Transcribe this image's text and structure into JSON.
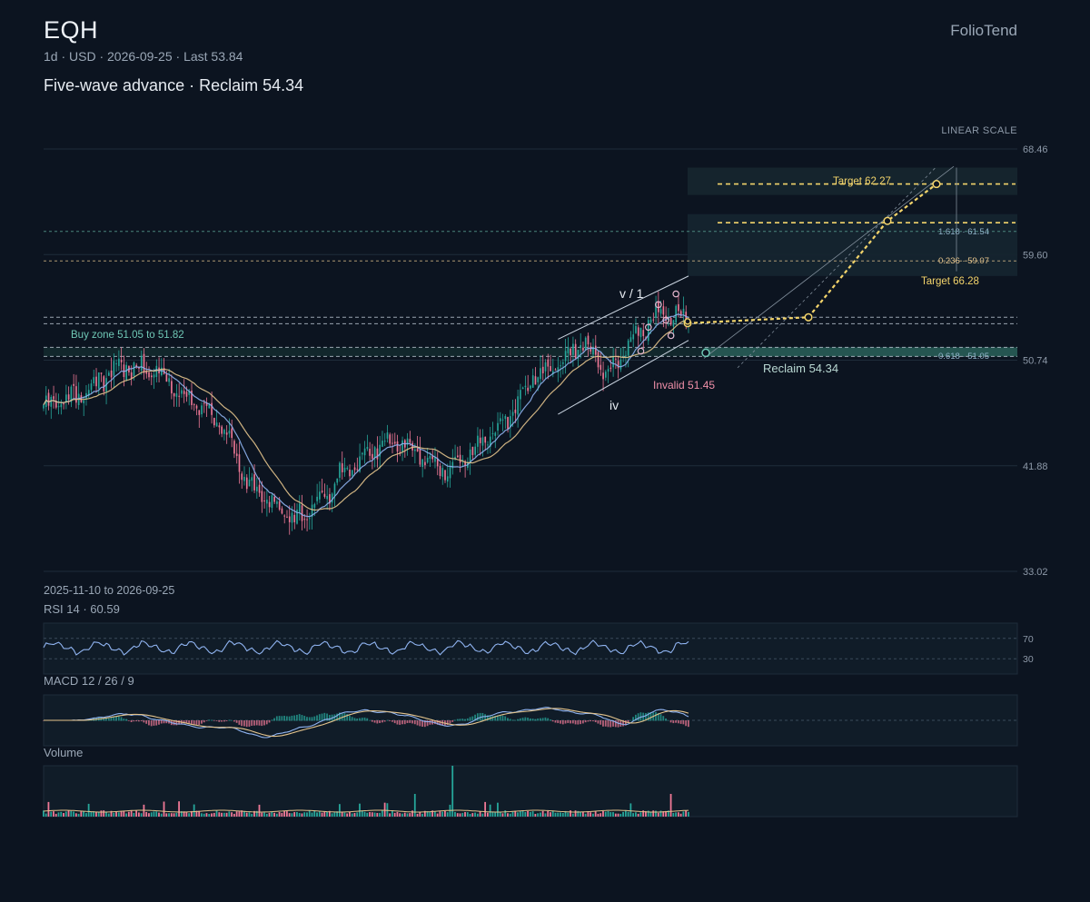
{
  "header": {
    "ticker": "EQH",
    "meta": "1d · USD · 2026-09-25 · Last 53.84",
    "subtitle": "Five-wave advance · Reclaim 54.34",
    "brand": "FolioTend",
    "scale_label": "LINEAR SCALE",
    "date_range": "2025-11-10 to 2026-09-25"
  },
  "colors": {
    "background": "#0c1420",
    "up_candle": "#26a69a",
    "down_candle": "#ef7896",
    "ma_fast": "#8fb3f0",
    "ma_slow": "#e3c38c",
    "projection": "#f3d46b",
    "zone": "#6fc7b5",
    "invalid": "#ef8fa8"
  },
  "chart_data": {
    "type": "candlestick",
    "x_start": "2025-11-10",
    "x_end": "2026-09-25",
    "interval": "1d",
    "y_ticks": [
      68.46,
      59.6,
      50.74,
      41.88,
      33.02
    ],
    "ylim": [
      33.02,
      68.46
    ],
    "last": 53.84,
    "scale": "linear",
    "trend_anchors": [
      [
        0,
        47.0
      ],
      [
        15,
        47.9
      ],
      [
        30,
        50.3
      ],
      [
        45,
        49.8
      ],
      [
        55,
        47.9
      ],
      [
        70,
        45.7
      ],
      [
        80,
        40.8
      ],
      [
        90,
        38.9
      ],
      [
        100,
        37.3
      ],
      [
        108,
        38.5
      ],
      [
        120,
        41.5
      ],
      [
        135,
        44.0
      ],
      [
        150,
        43.1
      ],
      [
        160,
        41.3
      ],
      [
        170,
        42.7
      ],
      [
        185,
        45.8
      ],
      [
        195,
        49.3
      ],
      [
        205,
        50.5
      ],
      [
        215,
        52.2
      ],
      [
        225,
        49.7
      ],
      [
        235,
        52.7
      ],
      [
        245,
        54.8
      ],
      [
        252,
        54.3
      ],
      [
        257,
        53.84
      ]
    ],
    "annotations": {
      "buy_zone": "Buy zone 51.05 to 51.82",
      "invalid": "Invalid 51.45",
      "reclaim": "Reclaim 54.34",
      "target_1": "Target 62.27",
      "target_2": "Target 66.28",
      "wave_top": "v / 1",
      "wave_low": "iv",
      "fib_1": "1.618 · 61.54",
      "fib_2": "0.236 · 59.07",
      "fib_3": "0.618 · 51.05"
    },
    "levels": {
      "buy_zone": [
        51.05,
        51.82
      ],
      "invalid": 51.45,
      "reclaim": 54.34,
      "target_1": 62.27,
      "target_2": 66.28,
      "fib_1618": 61.54,
      "fib_0236": 59.07,
      "fib_0618": 51.05
    },
    "projection_path": [
      53.84,
      54.34,
      62.27,
      66.28
    ],
    "rsi": {
      "label": "RSI 14 · 60.59",
      "period": 14,
      "value": 60.59,
      "levels": [
        70,
        30
      ]
    },
    "macd": {
      "label": "MACD 12 / 26 / 9",
      "fast": 12,
      "slow": 26,
      "signal": 9
    },
    "volume": {
      "label": "Volume"
    }
  }
}
